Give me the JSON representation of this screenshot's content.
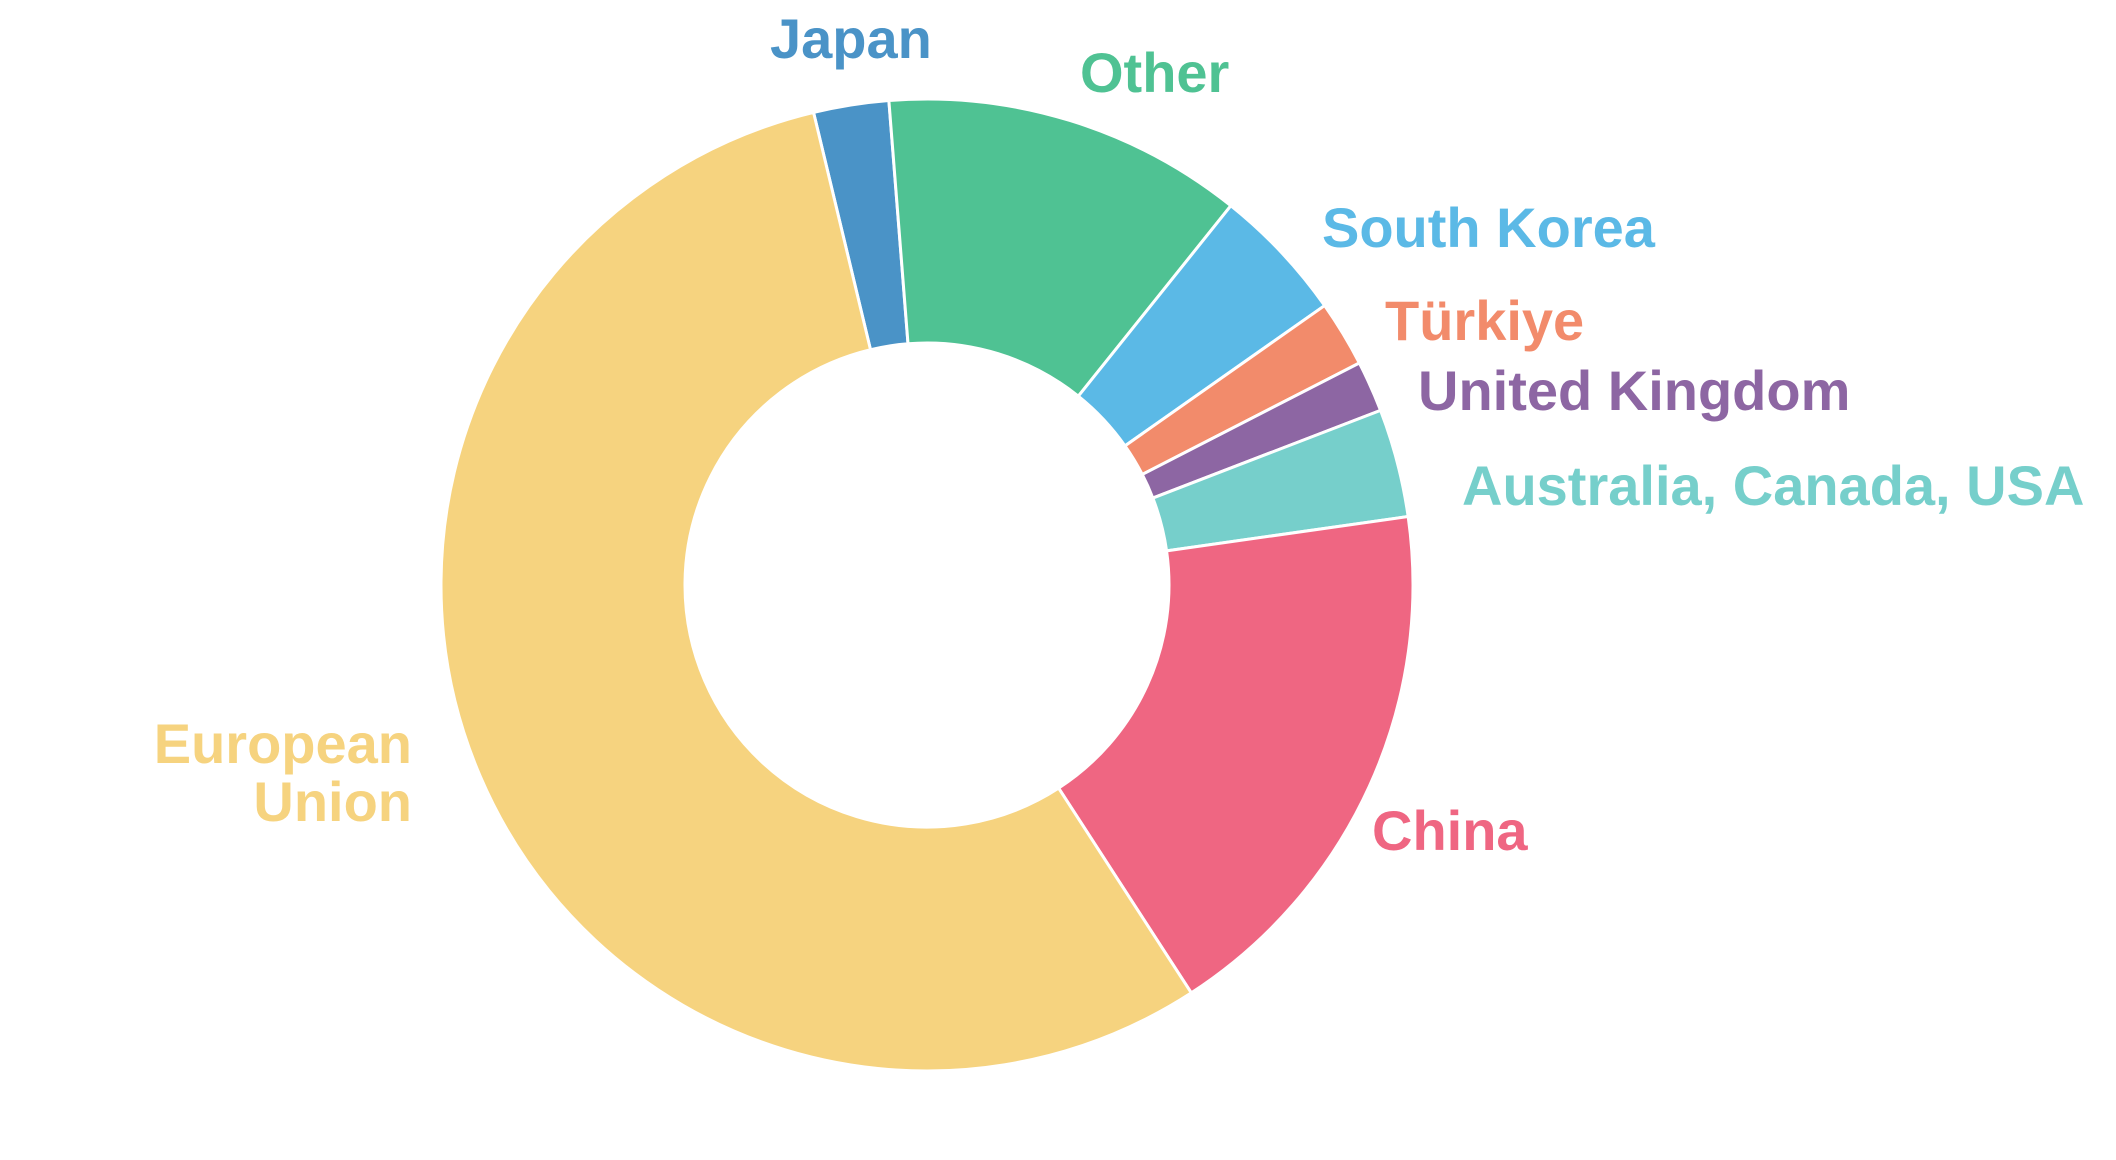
{
  "chart_data": {
    "type": "pie",
    "variant": "donut",
    "legend": "none",
    "slices": [
      {
        "label": "Japan",
        "value": 2.5,
        "color": "#4a93c7"
      },
      {
        "label": "Other",
        "value": 12.0,
        "color": "#4fc293"
      },
      {
        "label": "South Korea",
        "value": 4.5,
        "color": "#5bb9e6"
      },
      {
        "label": "Türkiye",
        "value": 2.2,
        "color": "#f28b6b"
      },
      {
        "label": "United Kingdom",
        "value": 1.7,
        "color": "#8d66a3"
      },
      {
        "label": "Australia, Canada, USA",
        "value": 3.6,
        "color": "#76cfcb"
      },
      {
        "label": "China",
        "value": 18.1,
        "color": "#ef6682"
      },
      {
        "label": "European Union",
        "value": 55.4,
        "color": "#f6d37f"
      }
    ]
  }
}
